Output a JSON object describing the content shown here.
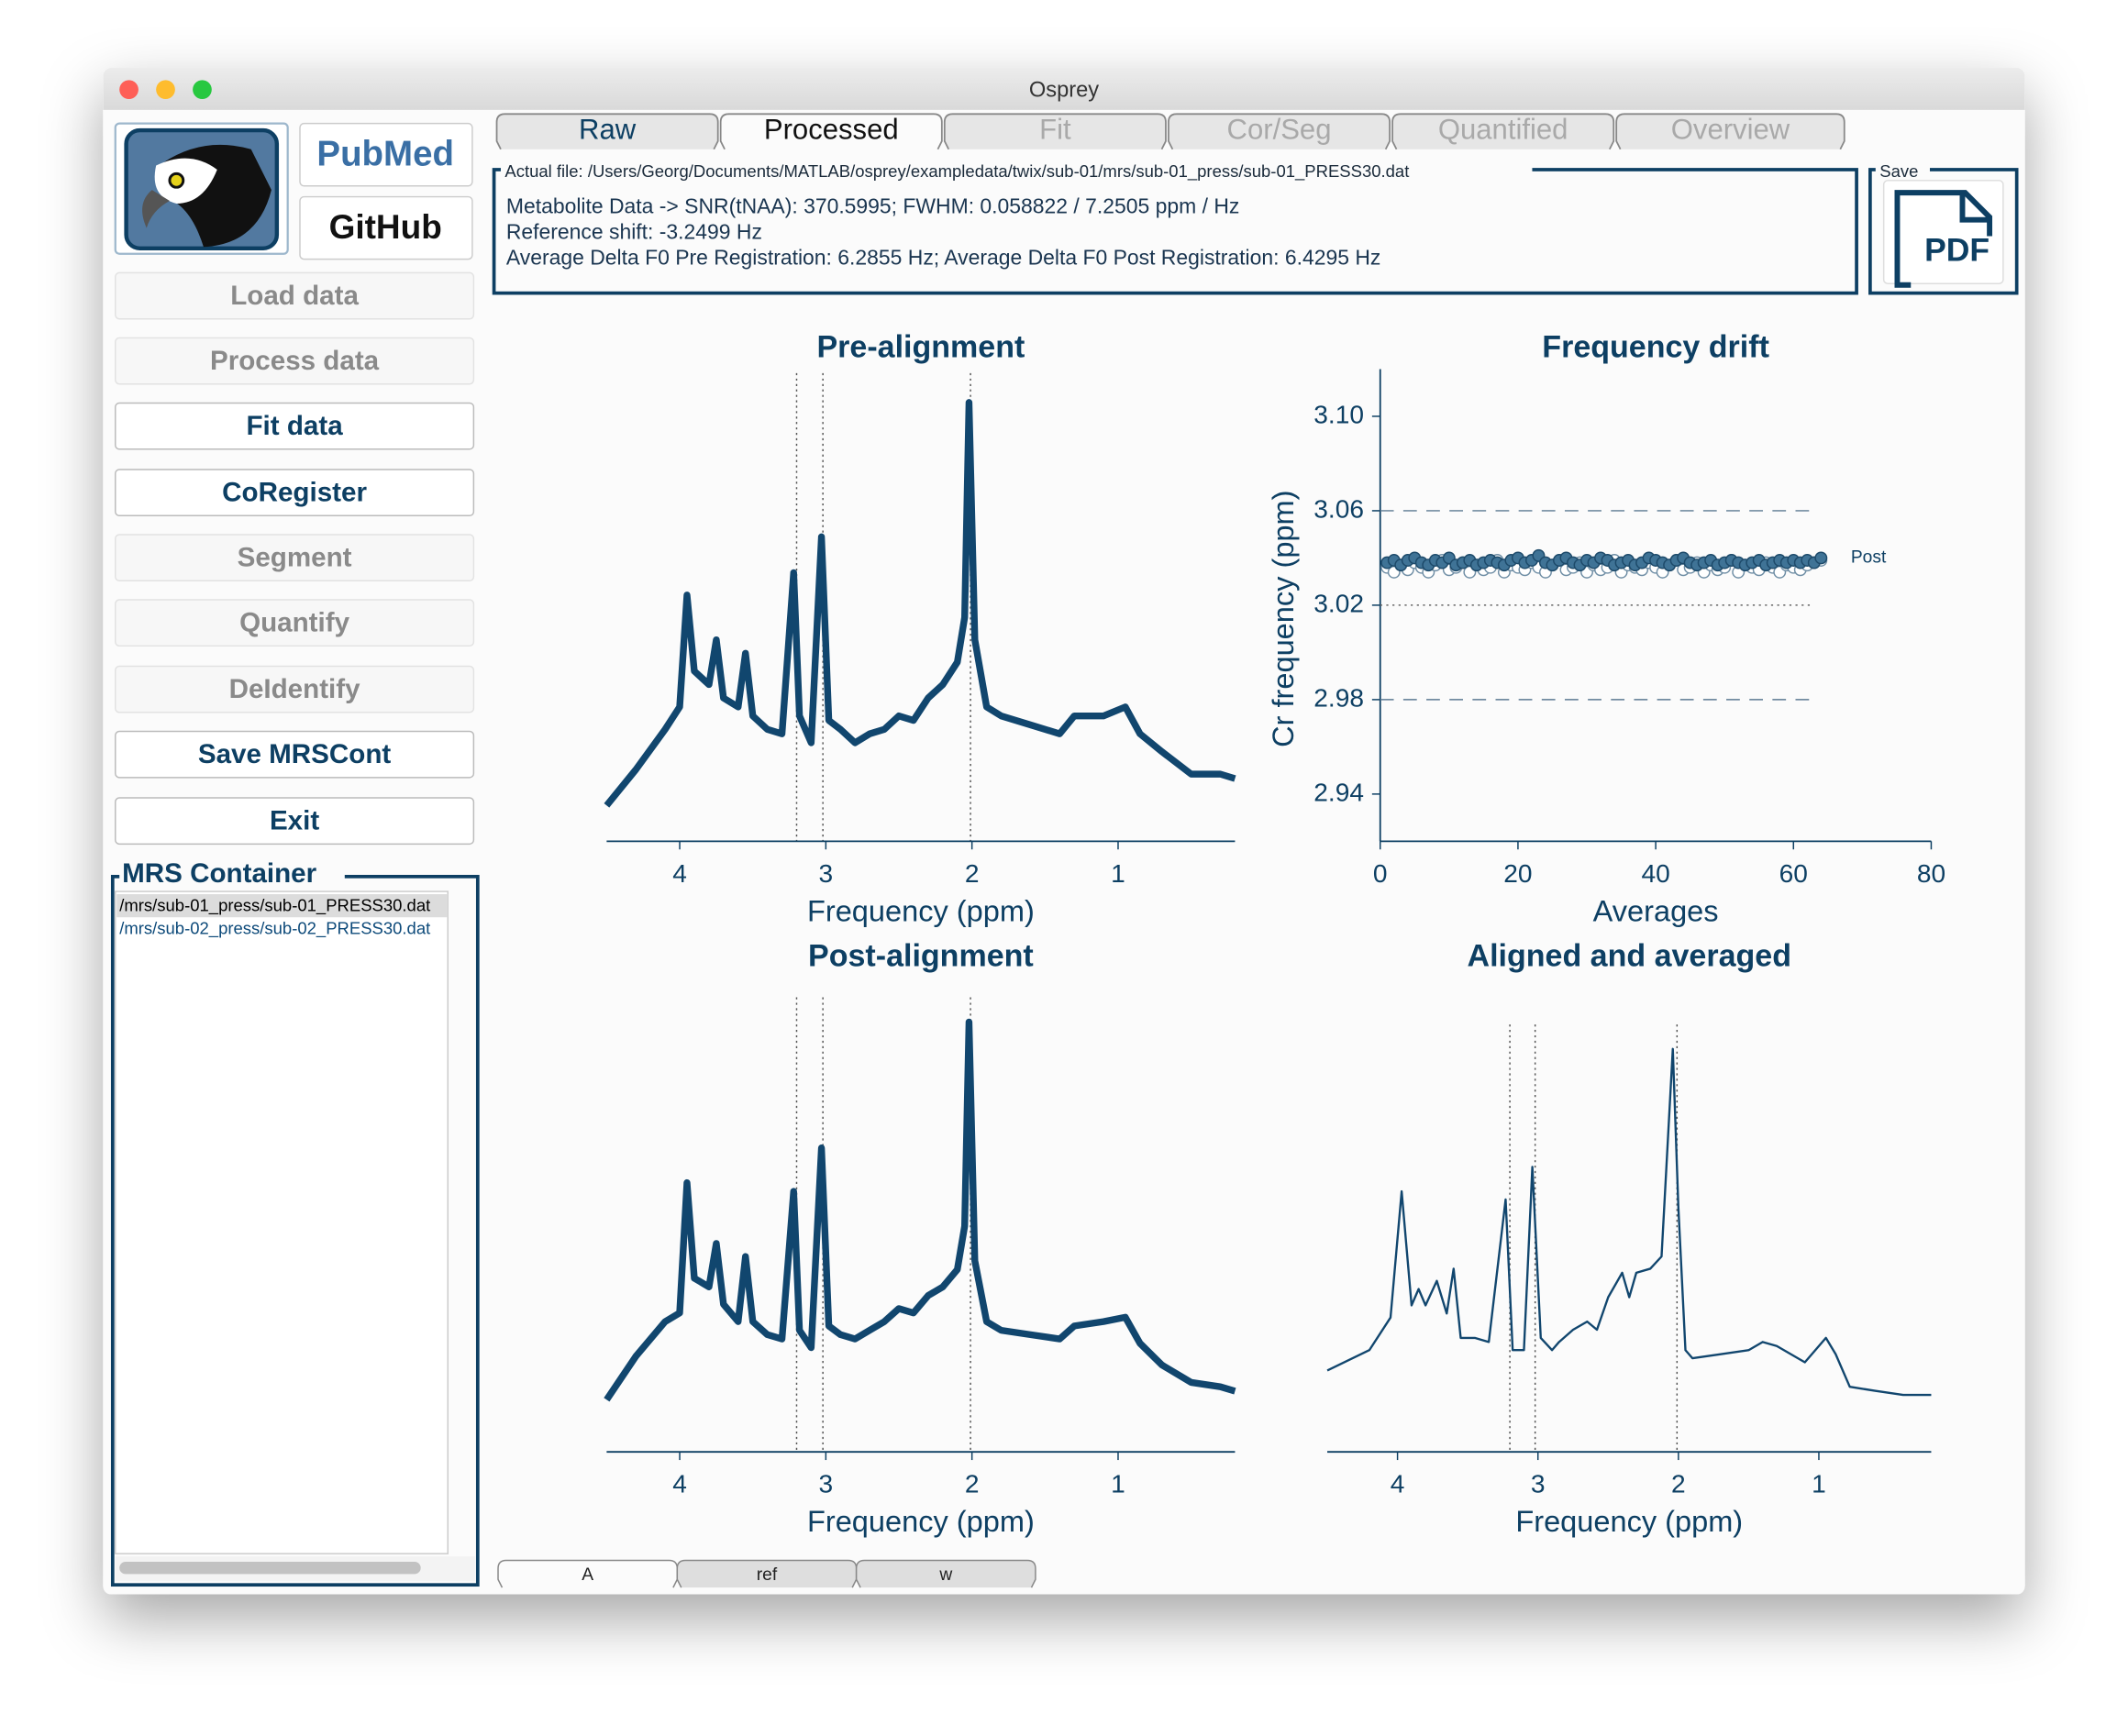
{
  "window": {
    "title": "Osprey"
  },
  "tabs": [
    {
      "label": "Raw",
      "state": "enabled"
    },
    {
      "label": "Processed",
      "state": "active"
    },
    {
      "label": "Fit",
      "state": "disabled"
    },
    {
      "label": "Cor/Seg",
      "state": "disabled"
    },
    {
      "label": "Quantified",
      "state": "disabled"
    },
    {
      "label": "Overview",
      "state": "disabled"
    }
  ],
  "logos": {
    "pubmed": "PubMed",
    "github": "GitHub"
  },
  "buttons": [
    {
      "label": "Load data",
      "enabled": false
    },
    {
      "label": "Process data",
      "enabled": false
    },
    {
      "label": "Fit data",
      "enabled": true
    },
    {
      "label": "CoRegister",
      "enabled": true
    },
    {
      "label": "Segment",
      "enabled": false
    },
    {
      "label": "Quantify",
      "enabled": false
    },
    {
      "label": "DeIdentify",
      "enabled": false
    },
    {
      "label": "Save MRSCont",
      "enabled": true
    },
    {
      "label": "Exit",
      "enabled": true
    }
  ],
  "info": {
    "label": "Actual file: /Users/Georg/Documents/MATLAB/osprey/exampledata/twix/sub-01/mrs/sub-01_press/sub-01_PRESS30.dat",
    "lines": [
      "Metabolite Data -> SNR(tNAA): 370.5995; FWHM: 0.058822 / 7.2505 ppm / Hz",
      "Reference shift: -3.2499 Hz",
      "Average Delta F0 Pre Registration: 6.2855 Hz; Average Delta F0 Post Registration: 6.4295 Hz"
    ]
  },
  "save": {
    "label": "Save",
    "button": "PDF"
  },
  "container": {
    "label": "MRS Container",
    "items": [
      "/mrs/sub-01_press/sub-01_PRESS30.dat",
      "/mrs/sub-02_press/sub-02_PRESS30.dat"
    ]
  },
  "subtabs": [
    {
      "label": "A",
      "state": "active"
    },
    {
      "label": "ref",
      "state": "enabled"
    },
    {
      "label": "w",
      "state": "enabled"
    }
  ],
  "chart_data": [
    {
      "type": "line",
      "title": "Pre-alignment",
      "xlabel": "Frequency (ppm)",
      "color": "#11466e",
      "xlim": [
        4.5,
        0.2
      ],
      "xticks": [
        4,
        3,
        2,
        1
      ],
      "reference_lines": [
        3.2,
        3.02,
        2.01
      ],
      "x": [
        4.5,
        4.3,
        4.1,
        4.0,
        3.95,
        3.9,
        3.8,
        3.75,
        3.7,
        3.6,
        3.55,
        3.5,
        3.4,
        3.3,
        3.22,
        3.18,
        3.1,
        3.03,
        2.98,
        2.9,
        2.8,
        2.7,
        2.6,
        2.5,
        2.4,
        2.3,
        2.2,
        2.1,
        2.05,
        2.02,
        1.98,
        1.9,
        1.8,
        1.6,
        1.4,
        1.3,
        1.1,
        0.95,
        0.85,
        0.7,
        0.5,
        0.3,
        0.2
      ],
      "values": [
        8,
        16,
        25,
        30,
        55,
        38,
        35,
        45,
        32,
        30,
        42,
        28,
        25,
        24,
        60,
        28,
        22,
        68,
        27,
        25,
        22,
        24,
        25,
        28,
        27,
        32,
        35,
        40,
        50,
        98,
        45,
        30,
        28,
        26,
        24,
        28,
        28,
        30,
        24,
        20,
        15,
        15,
        14
      ]
    },
    {
      "type": "scatter",
      "title": "Frequency drift",
      "xlabel": "Averages",
      "ylabel": "Cr frequency (ppm)",
      "xlim": [
        0,
        80
      ],
      "xticks": [
        0,
        20,
        40,
        60,
        80
      ],
      "ylim": [
        2.92,
        3.12
      ],
      "yticks": [
        {
          "value": 3.1,
          "label": "3.10"
        },
        3.06,
        3.02,
        2.98,
        2.94
      ],
      "reference_lines": [
        {
          "value": 3.06,
          "style": "dashed"
        },
        {
          "value": 3.02,
          "style": "dotted"
        },
        {
          "value": 2.98,
          "style": "dashed"
        }
      ],
      "x": [
        1,
        2,
        3,
        4,
        5,
        6,
        7,
        8,
        9,
        10,
        11,
        12,
        13,
        14,
        15,
        16,
        17,
        18,
        19,
        20,
        21,
        22,
        23,
        24,
        25,
        26,
        27,
        28,
        29,
        30,
        31,
        32,
        33,
        34,
        35,
        36,
        37,
        38,
        39,
        40,
        41,
        42,
        43,
        44,
        45,
        46,
        47,
        48,
        49,
        50,
        51,
        52,
        53,
        54,
        55,
        56,
        57,
        58,
        59,
        60,
        61,
        62,
        63,
        64
      ],
      "series": [
        {
          "color": "#6f8ea5",
          "marker": "open",
          "values": [
            3.036,
            3.034,
            3.037,
            3.035,
            3.038,
            3.036,
            3.034,
            3.037,
            3.039,
            3.035,
            3.036,
            3.038,
            3.034,
            3.037,
            3.035,
            3.036,
            3.039,
            3.034,
            3.037,
            3.036,
            3.035,
            3.038,
            3.036,
            3.034,
            3.037,
            3.039,
            3.035,
            3.036,
            3.038,
            3.034,
            3.037,
            3.035,
            3.036,
            3.039,
            3.034,
            3.037,
            3.036,
            3.035,
            3.038,
            3.036,
            3.034,
            3.037,
            3.039,
            3.035,
            3.036,
            3.038,
            3.034,
            3.037,
            3.035,
            3.036,
            3.039,
            3.034,
            3.037,
            3.036,
            3.035,
            3.038,
            3.036,
            3.034,
            3.037,
            3.036,
            3.035,
            3.037,
            3.038,
            3.039
          ]
        },
        {
          "name": "Post",
          "color": "#3f7396",
          "marker": "filled",
          "values": [
            3.038,
            3.039,
            3.037,
            3.039,
            3.04,
            3.038,
            3.037,
            3.039,
            3.038,
            3.04,
            3.037,
            3.038,
            3.039,
            3.037,
            3.038,
            3.039,
            3.038,
            3.037,
            3.039,
            3.04,
            3.038,
            3.039,
            3.041,
            3.038,
            3.037,
            3.039,
            3.04,
            3.038,
            3.037,
            3.039,
            3.038,
            3.04,
            3.039,
            3.037,
            3.038,
            3.039,
            3.037,
            3.038,
            3.04,
            3.039,
            3.038,
            3.037,
            3.039,
            3.04,
            3.038,
            3.037,
            3.038,
            3.039,
            3.037,
            3.038,
            3.039,
            3.038,
            3.037,
            3.038,
            3.039,
            3.037,
            3.038,
            3.039,
            3.038,
            3.039,
            3.038,
            3.039,
            3.038,
            3.04
          ]
        }
      ]
    },
    {
      "type": "line",
      "title": "Post-alignment",
      "xlabel": "Frequency (ppm)",
      "color": "#11466e",
      "xlim": [
        4.5,
        0.2
      ],
      "xticks": [
        4,
        3,
        2,
        1
      ],
      "reference_lines": [
        3.2,
        3.02,
        2.01
      ],
      "x": [
        4.5,
        4.3,
        4.1,
        4.0,
        3.95,
        3.9,
        3.8,
        3.75,
        3.7,
        3.6,
        3.55,
        3.5,
        3.4,
        3.3,
        3.22,
        3.18,
        3.1,
        3.03,
        2.98,
        2.9,
        2.8,
        2.7,
        2.6,
        2.5,
        2.4,
        2.3,
        2.2,
        2.1,
        2.05,
        2.02,
        1.98,
        1.9,
        1.8,
        1.6,
        1.4,
        1.3,
        1.1,
        0.95,
        0.85,
        0.7,
        0.5,
        0.3,
        0.2
      ],
      "values": [
        12,
        22,
        30,
        32,
        62,
        40,
        38,
        48,
        34,
        30,
        45,
        30,
        27,
        26,
        60,
        28,
        24,
        70,
        29,
        27,
        26,
        28,
        30,
        33,
        32,
        36,
        38,
        42,
        52,
        99,
        44,
        30,
        28,
        27,
        26,
        29,
        30,
        31,
        25,
        20,
        16,
        15,
        14
      ]
    },
    {
      "type": "line",
      "title": "Aligned and averaged",
      "xlabel": "Frequency (ppm)",
      "color": "#11466e",
      "xlim": [
        4.5,
        0.2
      ],
      "xticks": [
        4,
        3,
        2,
        1
      ],
      "reference_lines": [
        3.2,
        3.02,
        2.01
      ],
      "x": [
        4.5,
        4.2,
        4.05,
        3.97,
        3.9,
        3.85,
        3.8,
        3.72,
        3.65,
        3.6,
        3.55,
        3.45,
        3.35,
        3.23,
        3.18,
        3.1,
        3.04,
        2.98,
        2.9,
        2.85,
        2.75,
        2.65,
        2.58,
        2.5,
        2.4,
        2.35,
        2.3,
        2.2,
        2.12,
        2.04,
        2.0,
        1.95,
        1.9,
        1.7,
        1.5,
        1.4,
        1.3,
        1.1,
        0.95,
        0.88,
        0.78,
        0.6,
        0.4,
        0.2
      ],
      "values": [
        20,
        25,
        33,
        64,
        36,
        40,
        36,
        42,
        34,
        45,
        28,
        28,
        27,
        62,
        25,
        25,
        70,
        28,
        25,
        27,
        30,
        32,
        30,
        38,
        44,
        38,
        44,
        45,
        48,
        99,
        60,
        25,
        23,
        24,
        25,
        27,
        26,
        22,
        28,
        24,
        16,
        15,
        14,
        14
      ]
    }
  ]
}
